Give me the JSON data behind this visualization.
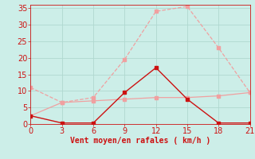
{
  "bg_color": "#cceee8",
  "line1": {
    "x": [
      0,
      3,
      6,
      9,
      12,
      15,
      18,
      21
    ],
    "y": [
      11,
      6.5,
      8,
      19.5,
      34,
      35.5,
      23,
      9.5
    ],
    "color": "#f0a0a0",
    "linestyle": "--",
    "linewidth": 0.9,
    "marker": "s",
    "markersize": 2.5
  },
  "line2": {
    "x": [
      0,
      3,
      6,
      9,
      12,
      15,
      18,
      21
    ],
    "y": [
      2.5,
      6.5,
      7,
      7.5,
      8,
      8,
      8.5,
      9.5
    ],
    "color": "#f0a0a0",
    "linestyle": "-",
    "linewidth": 0.9,
    "marker": "s",
    "markersize": 2.5
  },
  "line3": {
    "x": [
      0,
      3,
      6,
      9,
      12,
      15,
      18,
      21
    ],
    "y": [
      2.5,
      0.3,
      0.3,
      9.5,
      17,
      7.5,
      0.3,
      0.3
    ],
    "color": "#cc1111",
    "linestyle": "-",
    "linewidth": 1.0,
    "marker": "s",
    "markersize": 2.5
  },
  "xlabel": "Vent moyen/en rafales ( km/h )",
  "xlabel_color": "#cc1111",
  "xlabel_fontsize": 7,
  "xticks": [
    0,
    3,
    6,
    9,
    12,
    15,
    18,
    21
  ],
  "yticks": [
    0,
    5,
    10,
    15,
    20,
    25,
    30,
    35
  ],
  "xlim": [
    0,
    21
  ],
  "ylim": [
    0,
    36
  ],
  "tick_color": "#cc1111",
  "tick_fontsize": 7,
  "grid_color": "#b0d8d0",
  "grid_linewidth": 0.6
}
